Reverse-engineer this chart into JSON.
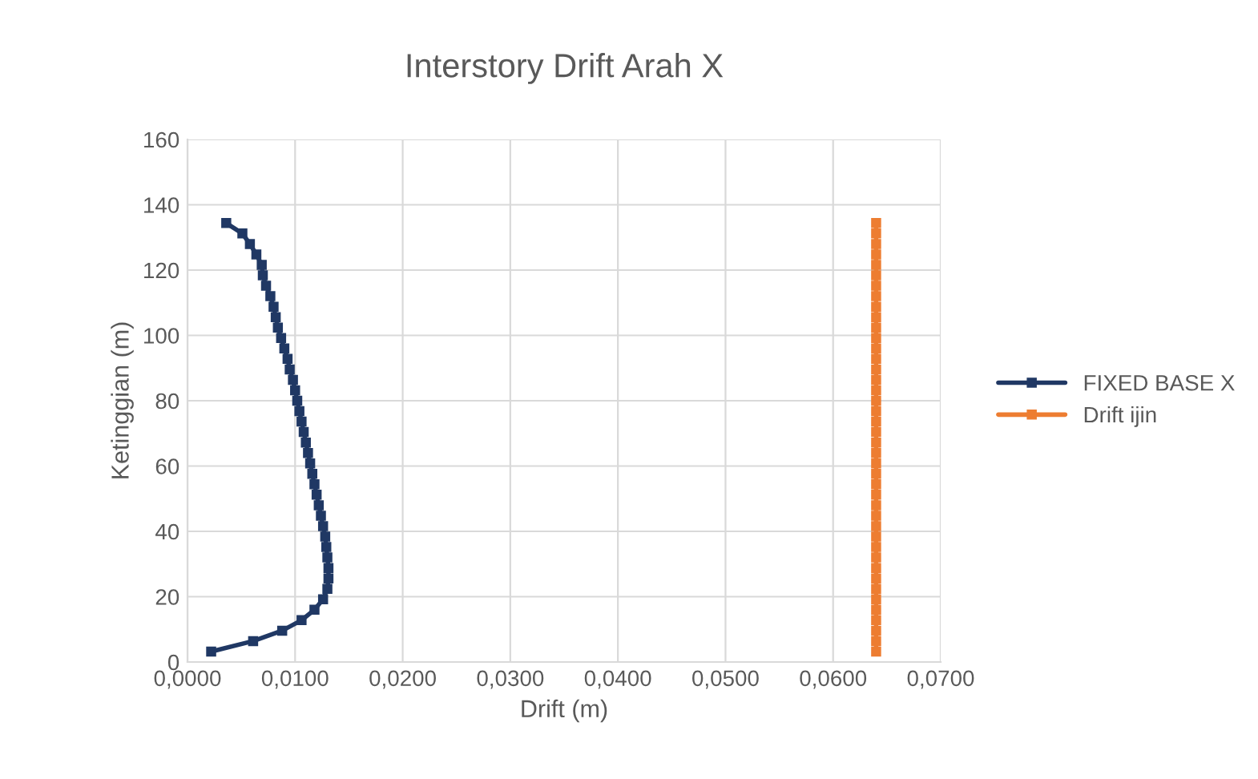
{
  "chart_data": {
    "type": "line",
    "title": "Interstory Drift Arah X",
    "xlabel": "Drift (m)",
    "ylabel": "Ketinggian (m)",
    "xlim": [
      0,
      0.07
    ],
    "xticks": [
      {
        "value": 0,
        "label": "0,0000"
      },
      {
        "value": 0.01,
        "label": "0,0100"
      },
      {
        "value": 0.02,
        "label": "0,0200"
      },
      {
        "value": 0.03,
        "label": "0,0300"
      },
      {
        "value": 0.04,
        "label": "0,0400"
      },
      {
        "value": 0.05,
        "label": "0,0500"
      },
      {
        "value": 0.06,
        "label": "0,0600"
      },
      {
        "value": 0.07,
        "label": "0,0700"
      }
    ],
    "ylim": [
      0,
      160
    ],
    "yticks": [
      0,
      20,
      40,
      60,
      80,
      100,
      120,
      140,
      160
    ],
    "grid": true,
    "legend": "right",
    "marker": "square",
    "line_style": "solid",
    "series": [
      {
        "name": "FIXED BASE X",
        "color": "#203864",
        "x": [
          0.0022,
          0.0061,
          0.0088,
          0.0106,
          0.0118,
          0.0126,
          0.013,
          0.0131,
          0.0131,
          0.013,
          0.0129,
          0.0128,
          0.0126,
          0.0124,
          0.0122,
          0.012,
          0.0118,
          0.0116,
          0.0114,
          0.0112,
          0.011,
          0.0108,
          0.0106,
          0.0104,
          0.0102,
          0.01,
          0.0098,
          0.0095,
          0.0093,
          0.009,
          0.0087,
          0.0084,
          0.0082,
          0.008,
          0.0077,
          0.0073,
          0.007,
          0.0069,
          0.0064,
          0.0058,
          0.0051,
          0.0036
        ],
        "values": [
          3.2,
          6.4,
          9.6,
          12.8,
          16,
          19.2,
          22.4,
          25.6,
          28.8,
          32,
          35.2,
          38.4,
          41.6,
          44.8,
          48,
          51.2,
          54.4,
          57.6,
          60.8,
          64,
          67.2,
          70.4,
          73.6,
          76.8,
          80,
          83.2,
          86.4,
          89.6,
          92.8,
          96,
          99.2,
          102.4,
          105.6,
          108.8,
          112,
          115.2,
          118.4,
          121.6,
          124.8,
          128,
          131.2,
          134.4
        ]
      },
      {
        "name": "Drift ijin",
        "color": "#ed7d31",
        "x": [
          0.064,
          0.064,
          0.064,
          0.064,
          0.064,
          0.064,
          0.064,
          0.064,
          0.064,
          0.064,
          0.064,
          0.064,
          0.064,
          0.064,
          0.064,
          0.064,
          0.064,
          0.064,
          0.064,
          0.064,
          0.064,
          0.064,
          0.064,
          0.064,
          0.064,
          0.064,
          0.064,
          0.064,
          0.064,
          0.064,
          0.064,
          0.064,
          0.064,
          0.064,
          0.064,
          0.064,
          0.064,
          0.064,
          0.064,
          0.064,
          0.064,
          0.064
        ],
        "values": [
          3.2,
          6.4,
          9.6,
          12.8,
          16,
          19.2,
          22.4,
          25.6,
          28.8,
          32,
          35.2,
          38.4,
          41.6,
          44.8,
          48,
          51.2,
          54.4,
          57.6,
          60.8,
          64,
          67.2,
          70.4,
          73.6,
          76.8,
          80,
          83.2,
          86.4,
          89.6,
          92.8,
          96,
          99.2,
          102.4,
          105.6,
          108.8,
          112,
          115.2,
          118.4,
          121.6,
          124.8,
          128,
          131.2,
          134.4
        ]
      }
    ]
  }
}
